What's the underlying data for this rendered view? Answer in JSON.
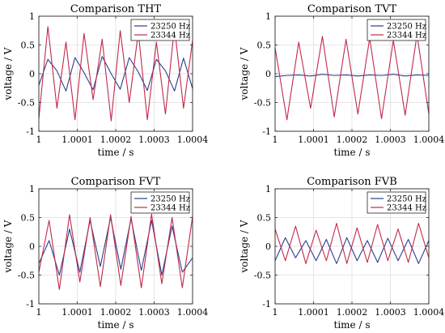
{
  "chart_data": [
    {
      "type": "line",
      "title": "Comparison THT",
      "xlabel": "time / s",
      "ylabel": "voltage / V",
      "xlim": [
        1,
        1.0004
      ],
      "ylim": [
        -1,
        1
      ],
      "xticks": [
        "1",
        "1.0001",
        "1.0002",
        "1.0003",
        "1.0004"
      ],
      "yticks": [
        "-1",
        "-0.5",
        "0",
        "0.5",
        "1"
      ],
      "grid": true,
      "legend_position": "top-right",
      "series": [
        {
          "name": "23250 Hz",
          "color": "#2b3f8c",
          "amplitude": 0.3,
          "values": [
            -0.2,
            0.25,
            0.05,
            -0.3,
            0.28,
            0.02,
            -0.28,
            0.3,
            0.0,
            -0.27,
            0.28,
            0.03,
            -0.29,
            0.25,
            0.05,
            -0.3,
            0.27,
            -0.26
          ]
        },
        {
          "name": "23344 Hz",
          "color": "#c2294a",
          "amplitude": 0.82,
          "values": [
            -0.78,
            0.82,
            -0.6,
            0.55,
            -0.8,
            0.7,
            -0.45,
            0.6,
            -0.82,
            0.75,
            -0.5,
            0.72,
            -0.8,
            0.55,
            -0.7,
            0.82,
            -0.6,
            0.58
          ]
        }
      ]
    },
    {
      "type": "line",
      "title": "Comparison TVT",
      "xlabel": "time / s",
      "ylabel": "voltage / V",
      "xlim": [
        1,
        1.0004
      ],
      "ylim": [
        -1,
        1
      ],
      "xticks": [
        "1",
        "1.0001",
        "1.0002",
        "1.0003",
        "1.0004"
      ],
      "yticks": [
        "-1",
        "-0.5",
        "0",
        "0.5",
        "1"
      ],
      "grid": true,
      "legend_position": "top-right",
      "series": [
        {
          "name": "23250 Hz",
          "color": "#2b3f8c",
          "amplitude": 0.04,
          "values": [
            -0.05,
            -0.03,
            -0.02,
            -0.04,
            -0.01,
            -0.03,
            -0.02,
            -0.04,
            -0.02,
            -0.03,
            -0.01,
            -0.04,
            -0.02,
            -0.03
          ]
        },
        {
          "name": "23344 Hz",
          "color": "#c2294a",
          "amplitude": 0.8,
          "values": [
            0.45,
            -0.8,
            0.55,
            -0.6,
            0.65,
            -0.75,
            0.6,
            -0.7,
            0.62,
            -0.78,
            0.58,
            -0.72,
            0.68,
            -0.7
          ]
        }
      ]
    },
    {
      "type": "line",
      "title": "Comparison FVT",
      "xlabel": "time / s",
      "ylabel": "voltage / V",
      "xlim": [
        1,
        1.0004
      ],
      "ylim": [
        -1,
        1
      ],
      "xticks": [
        "1",
        "1.0001",
        "1.0002",
        "1.0003",
        "1.0004"
      ],
      "yticks": [
        "-1",
        "-0.5",
        "0",
        "0.5",
        "1"
      ],
      "grid": true,
      "legend_position": "top-right",
      "series": [
        {
          "name": "23250 Hz",
          "color": "#2b3f8c",
          "amplitude": 0.5,
          "values": [
            -0.3,
            0.1,
            -0.5,
            0.3,
            -0.45,
            0.45,
            -0.35,
            0.5,
            -0.4,
            0.48,
            -0.42,
            0.45,
            -0.5,
            0.35,
            -0.45,
            -0.2
          ]
        },
        {
          "name": "23344 Hz",
          "color": "#c2294a",
          "amplitude": 0.75,
          "values": [
            -0.45,
            0.45,
            -0.75,
            0.55,
            -0.62,
            0.5,
            -0.7,
            0.55,
            -0.68,
            0.52,
            -0.72,
            0.56,
            -0.65,
            0.5,
            -0.72,
            0.52
          ]
        }
      ]
    },
    {
      "type": "line",
      "title": "Comparison FVB",
      "xlabel": "time / s",
      "ylabel": "voltage / V",
      "xlim": [
        1,
        1.0004
      ],
      "ylim": [
        -1,
        1
      ],
      "xticks": [
        "1",
        "1.0001",
        "1.0002",
        "1.0003",
        "1.0004"
      ],
      "yticks": [
        "-1",
        "-0.5",
        "0",
        "0.5",
        "1"
      ],
      "grid": true,
      "legend_position": "top-right",
      "series": [
        {
          "name": "23250 Hz",
          "color": "#2b3f8c",
          "amplitude": 0.25,
          "values": [
            -0.25,
            0.15,
            -0.2,
            0.1,
            -0.25,
            0.12,
            -0.3,
            0.15,
            -0.25,
            0.1,
            -0.28,
            0.14,
            -0.25,
            0.12,
            -0.3,
            0.1
          ]
        },
        {
          "name": "23344 Hz",
          "color": "#c2294a",
          "amplitude": 0.4,
          "values": [
            0.3,
            -0.25,
            0.35,
            -0.3,
            0.28,
            -0.25,
            0.4,
            -0.3,
            0.32,
            -0.28,
            0.38,
            -0.25,
            0.3,
            -0.28,
            0.4,
            -0.2
          ]
        }
      ]
    }
  ]
}
